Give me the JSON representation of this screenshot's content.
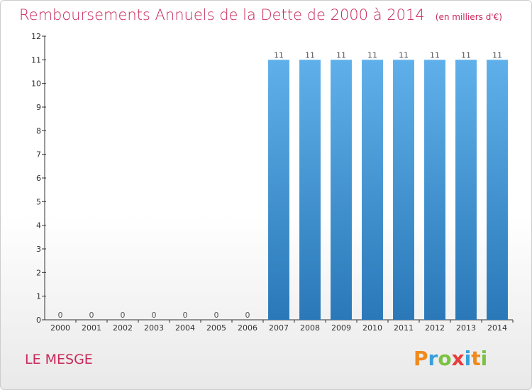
{
  "title": "Remboursements Annuels de la Dette de 2000 à 2014",
  "unit": "(en milliers d'€)",
  "commune": "LE MESGE",
  "logo": {
    "letters": [
      "P",
      "r",
      "o",
      "x",
      "i",
      "t",
      "i"
    ],
    "colors": [
      "#f08a1c",
      "#3aa0d8",
      "#7cc242",
      "#e83c3c",
      "#3aa0d8",
      "#f08a1c",
      "#7cc242"
    ]
  },
  "colors": {
    "accent": "#c8285a",
    "bar_top": "#5fb0ea",
    "bar_bottom": "#2a78b8",
    "axis": "#333333"
  },
  "chart_data": {
    "type": "bar",
    "title": "Remboursements Annuels de la Dette de 2000 à 2014",
    "ylabel": "en milliers d'€",
    "xlabel": "",
    "categories": [
      "2000",
      "2001",
      "2002",
      "2003",
      "2004",
      "2005",
      "2006",
      "2007",
      "2008",
      "2009",
      "2010",
      "2011",
      "2012",
      "2013",
      "2014"
    ],
    "values": [
      0,
      0,
      0,
      0,
      0,
      0,
      0,
      11,
      11,
      11,
      11,
      11,
      11,
      11,
      11
    ],
    "data_labels": [
      "0",
      "0",
      "0",
      "0",
      "0",
      "0",
      "0",
      "11",
      "11",
      "11",
      "11",
      "11",
      "11",
      "11",
      "11"
    ],
    "ylim": [
      0,
      12
    ],
    "yticks": [
      0,
      1,
      2,
      3,
      4,
      5,
      6,
      7,
      8,
      9,
      10,
      11,
      12
    ],
    "grid": false,
    "legend": "none"
  }
}
